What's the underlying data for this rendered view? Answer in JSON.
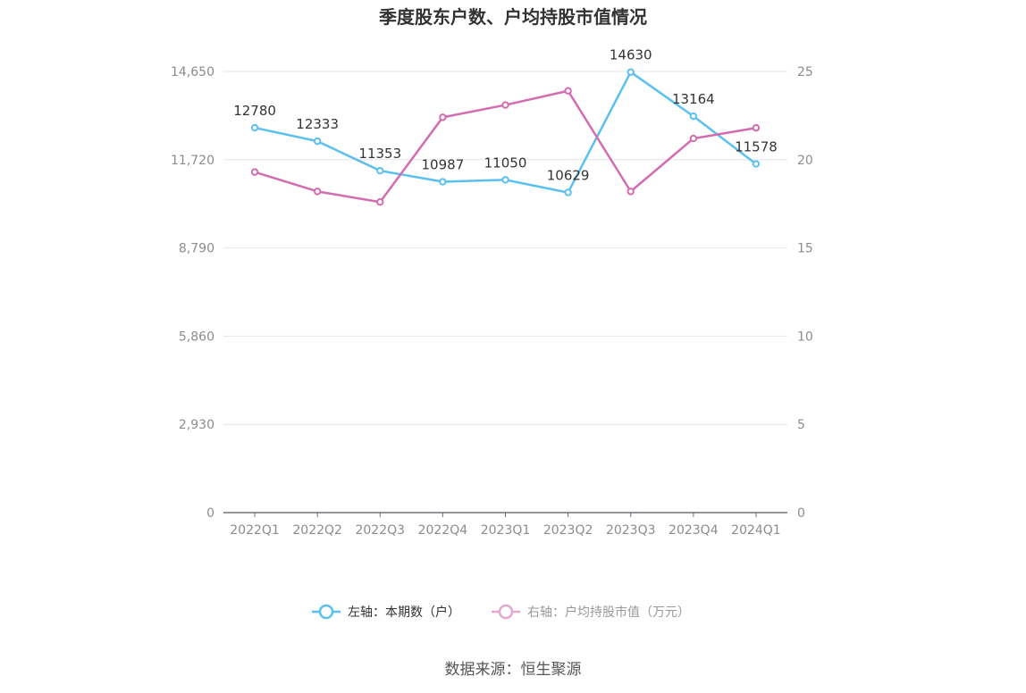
{
  "chart_data": {
    "type": "line",
    "title": "季度股东户数、户均持股市值情况",
    "categories": [
      "2022Q1",
      "2022Q2",
      "2022Q3",
      "2022Q4",
      "2023Q1",
      "2023Q2",
      "2023Q3",
      "2023Q4",
      "2024Q1"
    ],
    "left_axis": {
      "ylim": [
        0,
        14650
      ],
      "ticks": [
        "0",
        "2,930",
        "5,860",
        "8,790",
        "11,720",
        "14,650"
      ]
    },
    "right_axis": {
      "ylim": [
        0,
        25
      ],
      "ticks": [
        "0",
        "5",
        "10",
        "15",
        "20",
        "25"
      ]
    },
    "grid": true,
    "legend_position": "bottom",
    "series": [
      {
        "name": "左轴：本期数（户）",
        "axis": "left",
        "color": "#5bc0f0",
        "values": [
          12780,
          12333,
          11353,
          10987,
          11050,
          10629,
          14630,
          13164,
          11578
        ],
        "labels": [
          "12780",
          "12333",
          "11353",
          "10987",
          "11050",
          "10629",
          "14630",
          "13164",
          "11578"
        ]
      },
      {
        "name": "右轴：户均持股市值（万元）",
        "axis": "right",
        "color": "#d36cb0",
        "values": [
          19.3,
          18.2,
          17.6,
          22.4,
          23.1,
          23.9,
          18.2,
          21.2,
          21.8
        ]
      }
    ],
    "source": "数据来源：恒生聚源"
  }
}
